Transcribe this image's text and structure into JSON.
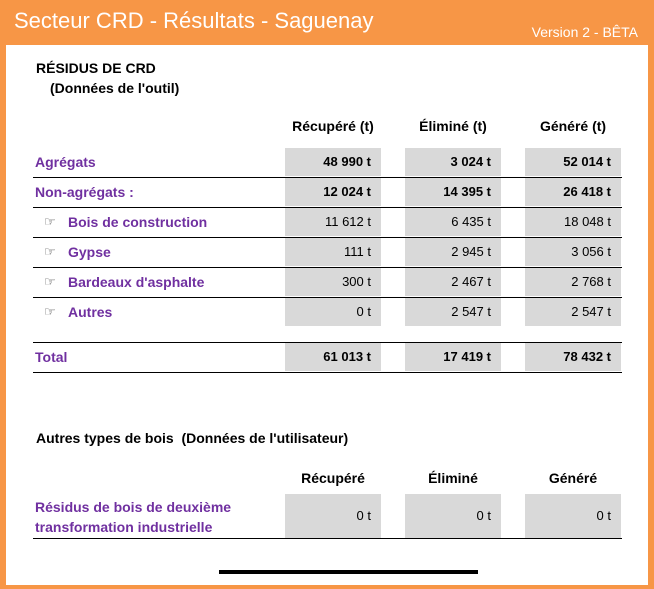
{
  "header": {
    "title": "Secteur CRD - Résultats - Saguenay",
    "version": "Version 2 - BÊTA"
  },
  "colors": {
    "accent": "#f79646",
    "label_purple": "#7030a0",
    "cell_gray": "#d9d9d9"
  },
  "section1": {
    "title": "RÉSIDUS DE CRD",
    "subtitle": "(Données de l'outil)",
    "columns": [
      "Récupéré (t)",
      "Éliminé (t)",
      "Généré (t)"
    ],
    "rows": [
      {
        "label": "Agrégats",
        "recupere": "48 990 t",
        "elimine": "3 024 t",
        "genere": "52 014 t"
      },
      {
        "label": "Non-agrégats :",
        "recupere": "12 024 t",
        "elimine": "14 395 t",
        "genere": "26 418 t"
      },
      {
        "label": "Bois de construction",
        "icon": "hand-pointer-icon",
        "recupere": "11 612 t",
        "elimine": "6 435 t",
        "genere": "18 048 t"
      },
      {
        "label": "Gypse",
        "icon": "hand-pointer-icon",
        "recupere": "111 t",
        "elimine": "2 945 t",
        "genere": "3 056 t"
      },
      {
        "label": "Bardeaux d'asphalte",
        "icon": "hand-pointer-icon",
        "recupere": "300 t",
        "elimine": "2 467 t",
        "genere": "2 768 t"
      },
      {
        "label": "Autres",
        "icon": "hand-pointer-icon",
        "recupere": "0 t",
        "elimine": "2 547 t",
        "genere": "2 547 t"
      }
    ],
    "total": {
      "label": "Total",
      "recupere": "61 013 t",
      "elimine": "17 419 t",
      "genere": "78 432 t"
    }
  },
  "section2": {
    "title": "Autres types de bois  (Données de l'utilisateur)",
    "columns": [
      "Récupéré",
      "Éliminé",
      "Généré"
    ],
    "row": {
      "label_line1": "Résidus de bois de deuxième",
      "label_line2": "transformation industrielle",
      "recupere": "0 t",
      "elimine": "0 t",
      "genere": "0 t"
    }
  }
}
